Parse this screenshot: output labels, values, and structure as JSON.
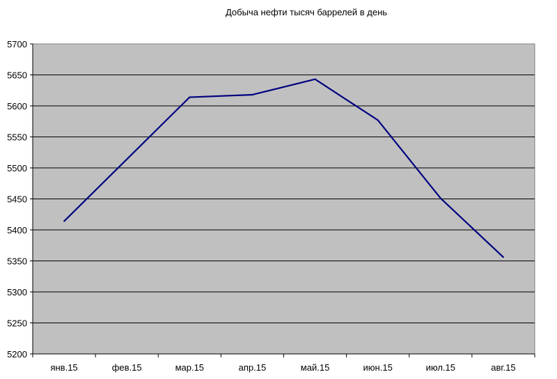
{
  "chart_data": {
    "type": "line",
    "title": "Добыча нефти тысяч баррелей в день",
    "categories": [
      "янв.15",
      "фев.15",
      "мар.15",
      "апр.15",
      "май.15",
      "июн.15",
      "июл.15",
      "авг.15"
    ],
    "series": [
      {
        "values": [
          5414,
          5514,
          5614,
          5618,
          5643,
          5577,
          5451,
          5356
        ]
      }
    ],
    "ylim": [
      5200,
      5700
    ],
    "yticks": [
      5200,
      5250,
      5300,
      5350,
      5400,
      5450,
      5500,
      5550,
      5600,
      5650,
      5700
    ],
    "grid": true,
    "legend": "none",
    "colors": {
      "plot_background": "#c0c0c0",
      "line": "#000080",
      "grid": "#000000"
    }
  }
}
